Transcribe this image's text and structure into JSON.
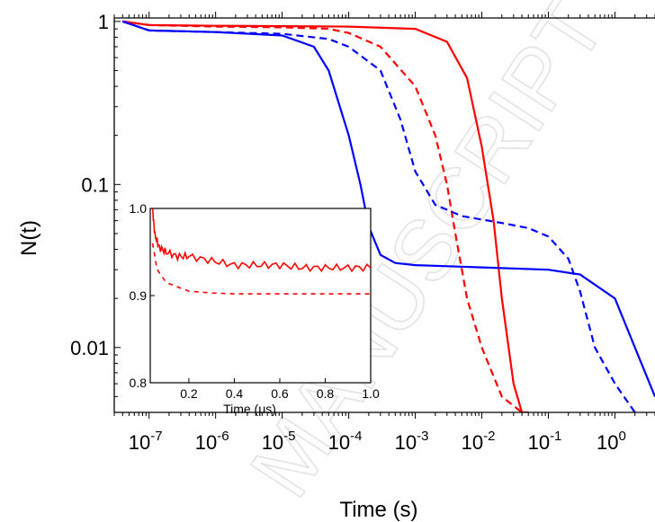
{
  "chart_data": [
    {
      "type": "line",
      "xlabel": "Time (s)",
      "ylabel": "N(t)",
      "xscale": "log",
      "yscale": "log",
      "xlim": [
        3e-08,
        4
      ],
      "ylim": [
        0.004,
        1.05
      ],
      "x_tick_labels": [
        {
          "base": "10",
          "exp": "-7",
          "value": 1e-07
        },
        {
          "base": "10",
          "exp": "-6",
          "value": 1e-06
        },
        {
          "base": "10",
          "exp": "-5",
          "value": 1e-05
        },
        {
          "base": "10",
          "exp": "-4",
          "value": 0.0001
        },
        {
          "base": "10",
          "exp": "-3",
          "value": 0.001
        },
        {
          "base": "10",
          "exp": "-2",
          "value": 0.01
        },
        {
          "base": "10",
          "exp": "-1",
          "value": 0.1
        },
        {
          "base": "10",
          "exp": "0",
          "value": 1
        }
      ],
      "y_tick_labels": [
        {
          "label": "1",
          "value": 1
        },
        {
          "label": "0.1",
          "value": 0.1
        },
        {
          "label": "0.01",
          "value": 0.01
        }
      ],
      "series": [
        {
          "color": "#ff0000",
          "style": "solid",
          "x": [
            4e-08,
            1e-07,
            1e-06,
            1e-05,
            0.0001,
            0.001,
            0.003,
            0.006,
            0.01,
            0.015,
            0.02,
            0.03,
            0.04,
            0.05
          ],
          "y": [
            1.0,
            0.95,
            0.94,
            0.935,
            0.93,
            0.9,
            0.75,
            0.45,
            0.17,
            0.06,
            0.02,
            0.006,
            0.004,
            0.004
          ]
        },
        {
          "color": "#ff0000",
          "style": "dashed",
          "x": [
            4e-08,
            1e-07,
            1e-06,
            1e-05,
            5e-05,
            0.0001,
            0.0003,
            0.001,
            0.002,
            0.003,
            0.004,
            0.006,
            0.01,
            0.02,
            0.04
          ],
          "y": [
            1.0,
            0.95,
            0.93,
            0.92,
            0.9,
            0.85,
            0.7,
            0.4,
            0.2,
            0.1,
            0.05,
            0.02,
            0.01,
            0.005,
            0.004
          ]
        },
        {
          "color": "#0000ff",
          "style": "solid",
          "x": [
            4e-08,
            1e-07,
            1e-06,
            1e-05,
            3e-05,
            5e-05,
            0.0001,
            0.00015,
            0.0002,
            0.0003,
            0.0005,
            0.001,
            0.01,
            0.1,
            0.3,
            1,
            2,
            4
          ],
          "y": [
            1.0,
            0.88,
            0.86,
            0.82,
            0.7,
            0.5,
            0.2,
            0.1,
            0.055,
            0.037,
            0.033,
            0.032,
            0.031,
            0.03,
            0.028,
            0.02,
            0.01,
            0.005
          ]
        },
        {
          "color": "#0000ff",
          "style": "dashed",
          "x": [
            4e-08,
            1e-07,
            1e-06,
            1e-05,
            5e-05,
            0.0001,
            0.0003,
            0.0006,
            0.001,
            0.002,
            0.005,
            0.02,
            0.05,
            0.1,
            0.2,
            0.3,
            0.5,
            1,
            2
          ],
          "y": [
            1.0,
            0.88,
            0.86,
            0.84,
            0.78,
            0.7,
            0.5,
            0.25,
            0.12,
            0.075,
            0.064,
            0.058,
            0.054,
            0.048,
            0.035,
            0.022,
            0.01,
            0.006,
            0.004
          ]
        }
      ]
    },
    {
      "type": "line",
      "xlabel": "Time (μs)",
      "xlim": [
        0.03,
        1.0
      ],
      "ylim": [
        0.8,
        1.0
      ],
      "x_tick_labels": [
        {
          "label": "0.2",
          "value": 0.2
        },
        {
          "label": "0.4",
          "value": 0.4
        },
        {
          "label": "0.6",
          "value": 0.6
        },
        {
          "label": "0.8",
          "value": 0.8
        },
        {
          "label": "1.0",
          "value": 1.0
        }
      ],
      "y_tick_labels": [
        {
          "label": "0.8",
          "value": 0.8
        },
        {
          "label": "0.9",
          "value": 0.9
        },
        {
          "label": "1.0",
          "value": 1.0
        }
      ],
      "series": [
        {
          "color": "#ff0000",
          "style": "solid",
          "x": [
            0.04,
            0.05,
            0.07,
            0.1,
            0.15,
            0.2,
            0.3,
            0.4,
            0.5,
            0.6,
            0.7,
            0.8,
            0.9,
            1.0
          ],
          "y": [
            1.0,
            0.97,
            0.955,
            0.95,
            0.945,
            0.945,
            0.94,
            0.935,
            0.935,
            0.935,
            0.932,
            0.932,
            0.932,
            0.932
          ]
        },
        {
          "color": "#ff0000",
          "style": "dashed",
          "x": [
            0.04,
            0.06,
            0.1,
            0.15,
            0.2,
            0.3,
            0.4,
            0.5,
            0.6,
            0.8,
            1.0
          ],
          "y": [
            0.96,
            0.93,
            0.915,
            0.91,
            0.905,
            0.903,
            0.902,
            0.902,
            0.902,
            0.902,
            0.902
          ]
        }
      ]
    }
  ],
  "watermark": {
    "text": "MANUSCRIPT",
    "color": "#e3e3e3"
  }
}
